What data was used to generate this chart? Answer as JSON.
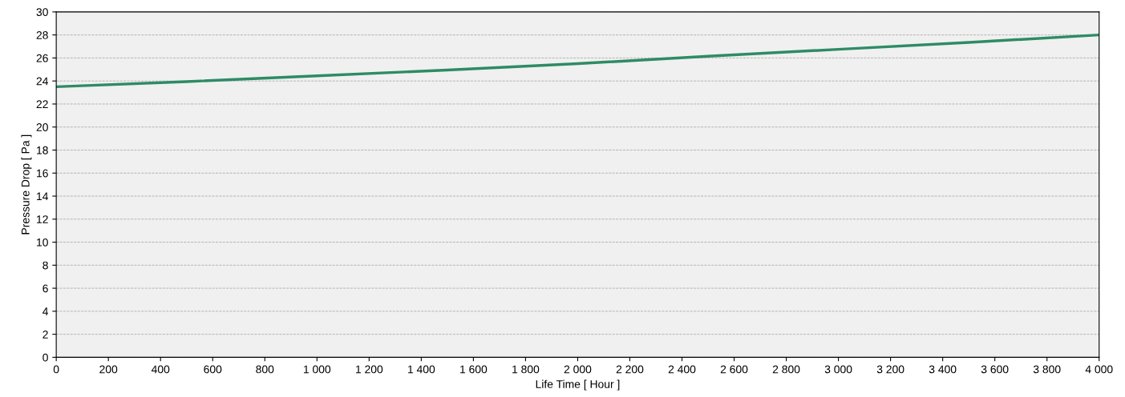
{
  "chart_data": {
    "type": "line",
    "xlabel": "Life Time [ Hour ]",
    "ylabel": "Pressure Drop [ Pa ]",
    "x": [
      0,
      500,
      1000,
      1500,
      2000,
      2500,
      3000,
      3500,
      4000
    ],
    "series": [
      {
        "color": "#2e8b66",
        "values": [
          23.5,
          23.95,
          24.45,
          24.95,
          25.5,
          26.15,
          26.75,
          27.35,
          28.0
        ]
      }
    ],
    "xlim": [
      0,
      4000
    ],
    "ylim": [
      0,
      30
    ],
    "xticks": [
      0,
      200,
      400,
      600,
      800,
      {
        "value": 1000,
        "label": "1 000"
      },
      {
        "value": 1200,
        "label": "1 200"
      },
      {
        "value": 1400,
        "label": "1 400"
      },
      {
        "value": 1600,
        "label": "1 600"
      },
      {
        "value": 1800,
        "label": "1 800"
      },
      {
        "value": 2000,
        "label": "2 000"
      },
      {
        "value": 2200,
        "label": "2 200"
      },
      {
        "value": 2400,
        "label": "2 400"
      },
      {
        "value": 2600,
        "label": "2 600"
      },
      {
        "value": 2800,
        "label": "2 800"
      },
      {
        "value": 3000,
        "label": "3 000"
      },
      {
        "value": 3200,
        "label": "3 200"
      },
      {
        "value": 3400,
        "label": "3 400"
      },
      {
        "value": 3600,
        "label": "3 600"
      },
      {
        "value": 3800,
        "label": "3 800"
      },
      {
        "value": 4000,
        "label": "4 000"
      }
    ],
    "yticks": [
      0,
      2,
      4,
      6,
      8,
      10,
      12,
      14,
      16,
      18,
      20,
      22,
      24,
      26,
      28,
      30
    ],
    "grid": "y",
    "legend": false,
    "marker": "none",
    "line_style": "solid"
  }
}
